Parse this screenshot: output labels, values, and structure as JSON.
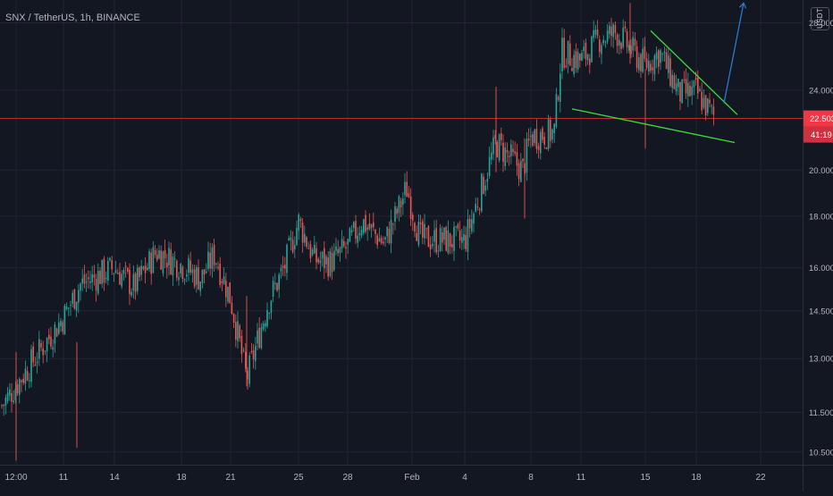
{
  "header": {
    "symbol_title": "SNX / TetherUS, 1h, BINANCE",
    "currency": "USDT"
  },
  "price_axis": {
    "tick_labels": [
      "28.000",
      "24.000",
      "20.000",
      "18.000",
      "16.000",
      "14.500",
      "13.000",
      "11.500",
      "10.500"
    ],
    "last_price_label": "22.503",
    "countdown_label": "41:19",
    "last_price_color": "#f23645"
  },
  "time_axis": {
    "tick_labels": [
      "12:00",
      "11",
      "14",
      "18",
      "21",
      "25",
      "28",
      "Feb",
      "4",
      "8",
      "11",
      "15",
      "18",
      "22"
    ]
  },
  "colors": {
    "background": "#131722",
    "up_candle": "#26a69a",
    "down_candle": "#ef5350",
    "trendline": "#3ddc3d",
    "projection_arrow": "#2f7fd6"
  },
  "chart_data": {
    "type": "candlestick",
    "title": "SNX / TetherUS, 1h, BINANCE",
    "y_scale": "log",
    "ylim": [
      10.2,
      29.5
    ],
    "last_price": 22.503,
    "grid": true,
    "close_path": [
      {
        "x": "12:00",
        "y": 11.6
      },
      {
        "x": "11",
        "y": 14.3
      },
      {
        "x": "12",
        "y": 15.4
      },
      {
        "x": "14",
        "y": 16.0
      },
      {
        "x": "16",
        "y": 15.3
      },
      {
        "x": "17",
        "y": 16.6
      },
      {
        "x": "18",
        "y": 16.1
      },
      {
        "x": "19",
        "y": 15.6
      },
      {
        "x": "20",
        "y": 16.5
      },
      {
        "x": "21",
        "y": 14.9
      },
      {
        "x": "21",
        "y": 12.4
      },
      {
        "x": "22",
        "y": 14.8
      },
      {
        "x": "24",
        "y": 16.0
      },
      {
        "x": "25",
        "y": 17.8
      },
      {
        "x": "26",
        "y": 16.3
      },
      {
        "x": "27",
        "y": 16.2
      },
      {
        "x": "28",
        "y": 16.8
      },
      {
        "x": "29",
        "y": 17.8
      },
      {
        "x": "31",
        "y": 16.9
      },
      {
        "x": "Feb",
        "y": 18.4
      },
      {
        "x": "2",
        "y": 19.2
      },
      {
        "x": "3",
        "y": 17.1
      },
      {
        "x": "4",
        "y": 17.0
      },
      {
        "x": "5",
        "y": 21.3
      },
      {
        "x": "6",
        "y": 20.6
      },
      {
        "x": "7",
        "y": 20.0
      },
      {
        "x": "8",
        "y": 21.6
      },
      {
        "x": "9",
        "y": 21.8
      },
      {
        "x": "10",
        "y": 26.2
      },
      {
        "x": "11",
        "y": 25.7
      },
      {
        "x": "12",
        "y": 27.0
      },
      {
        "x": "13",
        "y": 27.4
      },
      {
        "x": "14",
        "y": 26.4
      },
      {
        "x": "15",
        "y": 25.4
      },
      {
        "x": "16",
        "y": 26.2
      },
      {
        "x": "17",
        "y": 23.8
      },
      {
        "x": "18",
        "y": 23.9
      },
      {
        "x": "19",
        "y": 22.5
      }
    ]
  }
}
